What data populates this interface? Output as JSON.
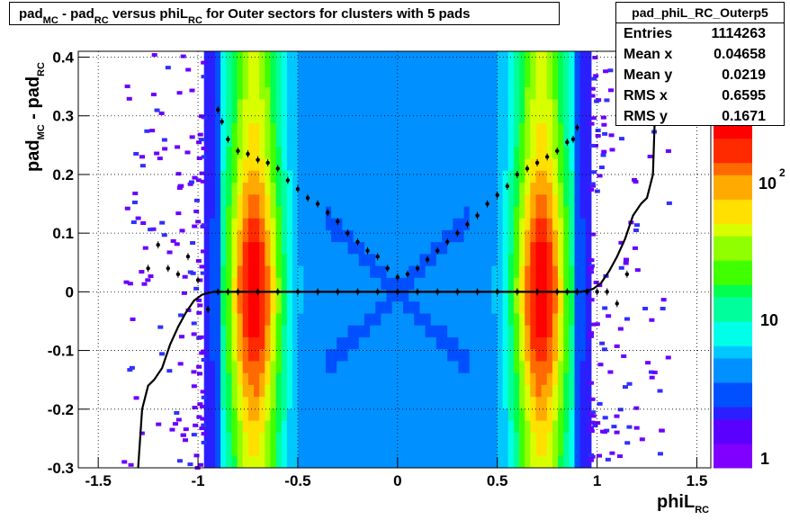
{
  "title": {
    "pre": "pad",
    "sub1": "MC",
    "mid1": " - pad",
    "sub2": "RC",
    "mid2": " versus phiL",
    "sub3": "RC",
    "post": " for Outer sectors for clusters with 5 pads"
  },
  "stats": {
    "name": "pad_phiL_RC_Outerp5",
    "rows": [
      {
        "label": "Entries",
        "value": "1114263"
      },
      {
        "label": "Mean x",
        "value": "0.04658"
      },
      {
        "label": "Mean y",
        "value": "0.0219"
      },
      {
        "label": "RMS x",
        "value": "0.6595"
      },
      {
        "label": "RMS y",
        "value": "0.1671"
      }
    ]
  },
  "axes": {
    "ylabel_main": "pad",
    "ylabel_sub1": "MC",
    "ylabel_mid": " - pad",
    "ylabel_sub2": "RC",
    "xlabel_main": "phiL",
    "xlabel_sub": "RC"
  },
  "chart_data": {
    "type": "heatmap",
    "title": "pad_MC - pad_RC versus phiL_RC for Outer sectors for clusters with 5 pads",
    "xlabel": "phiL_RC",
    "ylabel": "pad_MC - pad_RC",
    "xlim": [
      -1.6,
      1.57
    ],
    "ylim": [
      -0.3,
      0.41
    ],
    "x_ticks": [
      -1.5,
      -1,
      -0.5,
      0,
      0.5,
      1,
      1.5
    ],
    "y_ticks": [
      -0.3,
      -0.2,
      -0.1,
      0,
      0.1,
      0.2,
      0.3,
      0.4
    ],
    "colorbar": {
      "scale": "log",
      "labels": [
        "1",
        "10",
        "10",
        "2"
      ],
      "ticks": [
        1,
        10,
        100
      ]
    },
    "grid": true,
    "legend": "top-right",
    "mean_profile": {
      "x": [
        -1.25,
        -1.2,
        -1.15,
        -1.1,
        -1.05,
        -1.0,
        -0.95,
        -0.9,
        -0.85,
        -0.8,
        -0.7,
        -0.6,
        -0.5,
        -0.4,
        -0.3,
        -0.2,
        -0.1,
        0,
        0.1,
        0.2,
        0.3,
        0.4,
        0.5,
        0.6,
        0.7,
        0.8,
        0.85,
        0.9,
        0.95,
        1.0,
        1.05,
        1.1,
        1.15
      ],
      "y": [
        0.04,
        0.08,
        0.04,
        0.03,
        0.06,
        0.02,
        -0.03,
        0.0,
        0.0,
        0.0,
        0.0,
        0.0,
        0.0,
        0.0,
        0.0,
        0.0,
        0.0,
        0.0,
        0.0,
        0.0,
        0.0,
        0.0,
        0.0,
        0.0,
        0.0,
        0.0,
        0.0,
        0.0,
        0.0,
        0.0,
        0.0,
        -0.02,
        0.03
      ]
    },
    "rms_profile": {
      "x": [
        -0.9,
        -0.88,
        -0.85,
        -0.8,
        -0.75,
        -0.7,
        -0.65,
        -0.6,
        -0.55,
        -0.5,
        -0.45,
        -0.4,
        -0.35,
        -0.3,
        -0.25,
        -0.2,
        -0.15,
        -0.1,
        -0.05,
        0.0,
        0.05,
        0.1,
        0.15,
        0.2,
        0.25,
        0.3,
        0.35,
        0.4,
        0.45,
        0.5,
        0.55,
        0.6,
        0.65,
        0.7,
        0.75,
        0.8,
        0.85,
        0.88,
        0.9
      ],
      "y": [
        0.31,
        0.29,
        0.26,
        0.24,
        0.235,
        0.225,
        0.22,
        0.21,
        0.19,
        0.175,
        0.16,
        0.15,
        0.135,
        0.12,
        0.1,
        0.085,
        0.07,
        0.06,
        0.04,
        0.025,
        0.03,
        0.04,
        0.055,
        0.07,
        0.085,
        0.1,
        0.115,
        0.13,
        0.15,
        0.165,
        0.18,
        0.2,
        0.21,
        0.22,
        0.23,
        0.24,
        0.255,
        0.26,
        0.28
      ]
    },
    "fit_curve": {
      "x": [
        -1.3,
        -1.28,
        -1.25,
        -1.22,
        -1.18,
        -1.14,
        -1.1,
        -1.06,
        -1.02,
        -0.98,
        -0.95,
        -0.92,
        -0.88,
        0.88,
        0.92,
        0.95,
        0.98,
        1.02,
        1.06,
        1.1,
        1.14,
        1.18,
        1.22,
        1.25,
        1.28,
        1.3
      ],
      "y": [
        -0.3,
        -0.2,
        -0.16,
        -0.15,
        -0.13,
        -0.09,
        -0.06,
        -0.035,
        -0.015,
        -0.005,
        -0.002,
        0.0,
        0.0,
        0.0,
        0.0,
        0.002,
        0.005,
        0.015,
        0.035,
        0.06,
        0.09,
        0.13,
        0.15,
        0.16,
        0.2,
        0.41
      ]
    }
  }
}
